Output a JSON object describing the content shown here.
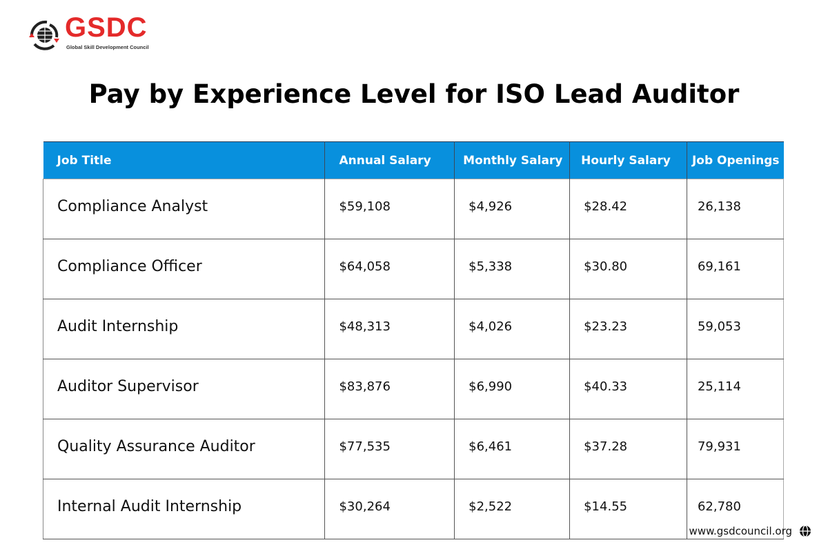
{
  "logo": {
    "brand": "GSDC",
    "subtitle": "Global Skill Development Council",
    "accent": "#e42a2a"
  },
  "title": "Pay by Experience Level for ISO Lead Auditor",
  "table": {
    "header_color": "#0890dd",
    "columns": [
      "Job Title",
      "Annual Salary",
      "Monthly Salary",
      "Hourly Salary",
      "Job Openings"
    ],
    "rows": [
      [
        "Compliance Analyst",
        "$59,108",
        "$4,926",
        "$28.42",
        "26,138"
      ],
      [
        "Compliance Officer",
        "$64,058",
        "$5,338",
        "$30.80",
        "69,161"
      ],
      [
        "Audit Internship",
        "$48,313",
        "$4,026",
        "$23.23",
        "59,053"
      ],
      [
        "Auditor Supervisor",
        "$83,876",
        "$6,990",
        "$40.33",
        "25,114"
      ],
      [
        "Quality Assurance Auditor",
        "$77,535",
        "$6,461",
        "$37.28",
        "79,931"
      ],
      [
        "Internal Audit Internship",
        "$30,264",
        "$2,522",
        "$14.55",
        "62,780"
      ]
    ]
  },
  "footer": {
    "url": "www.gsdcouncil.org",
    "icon": "globe-icon"
  }
}
